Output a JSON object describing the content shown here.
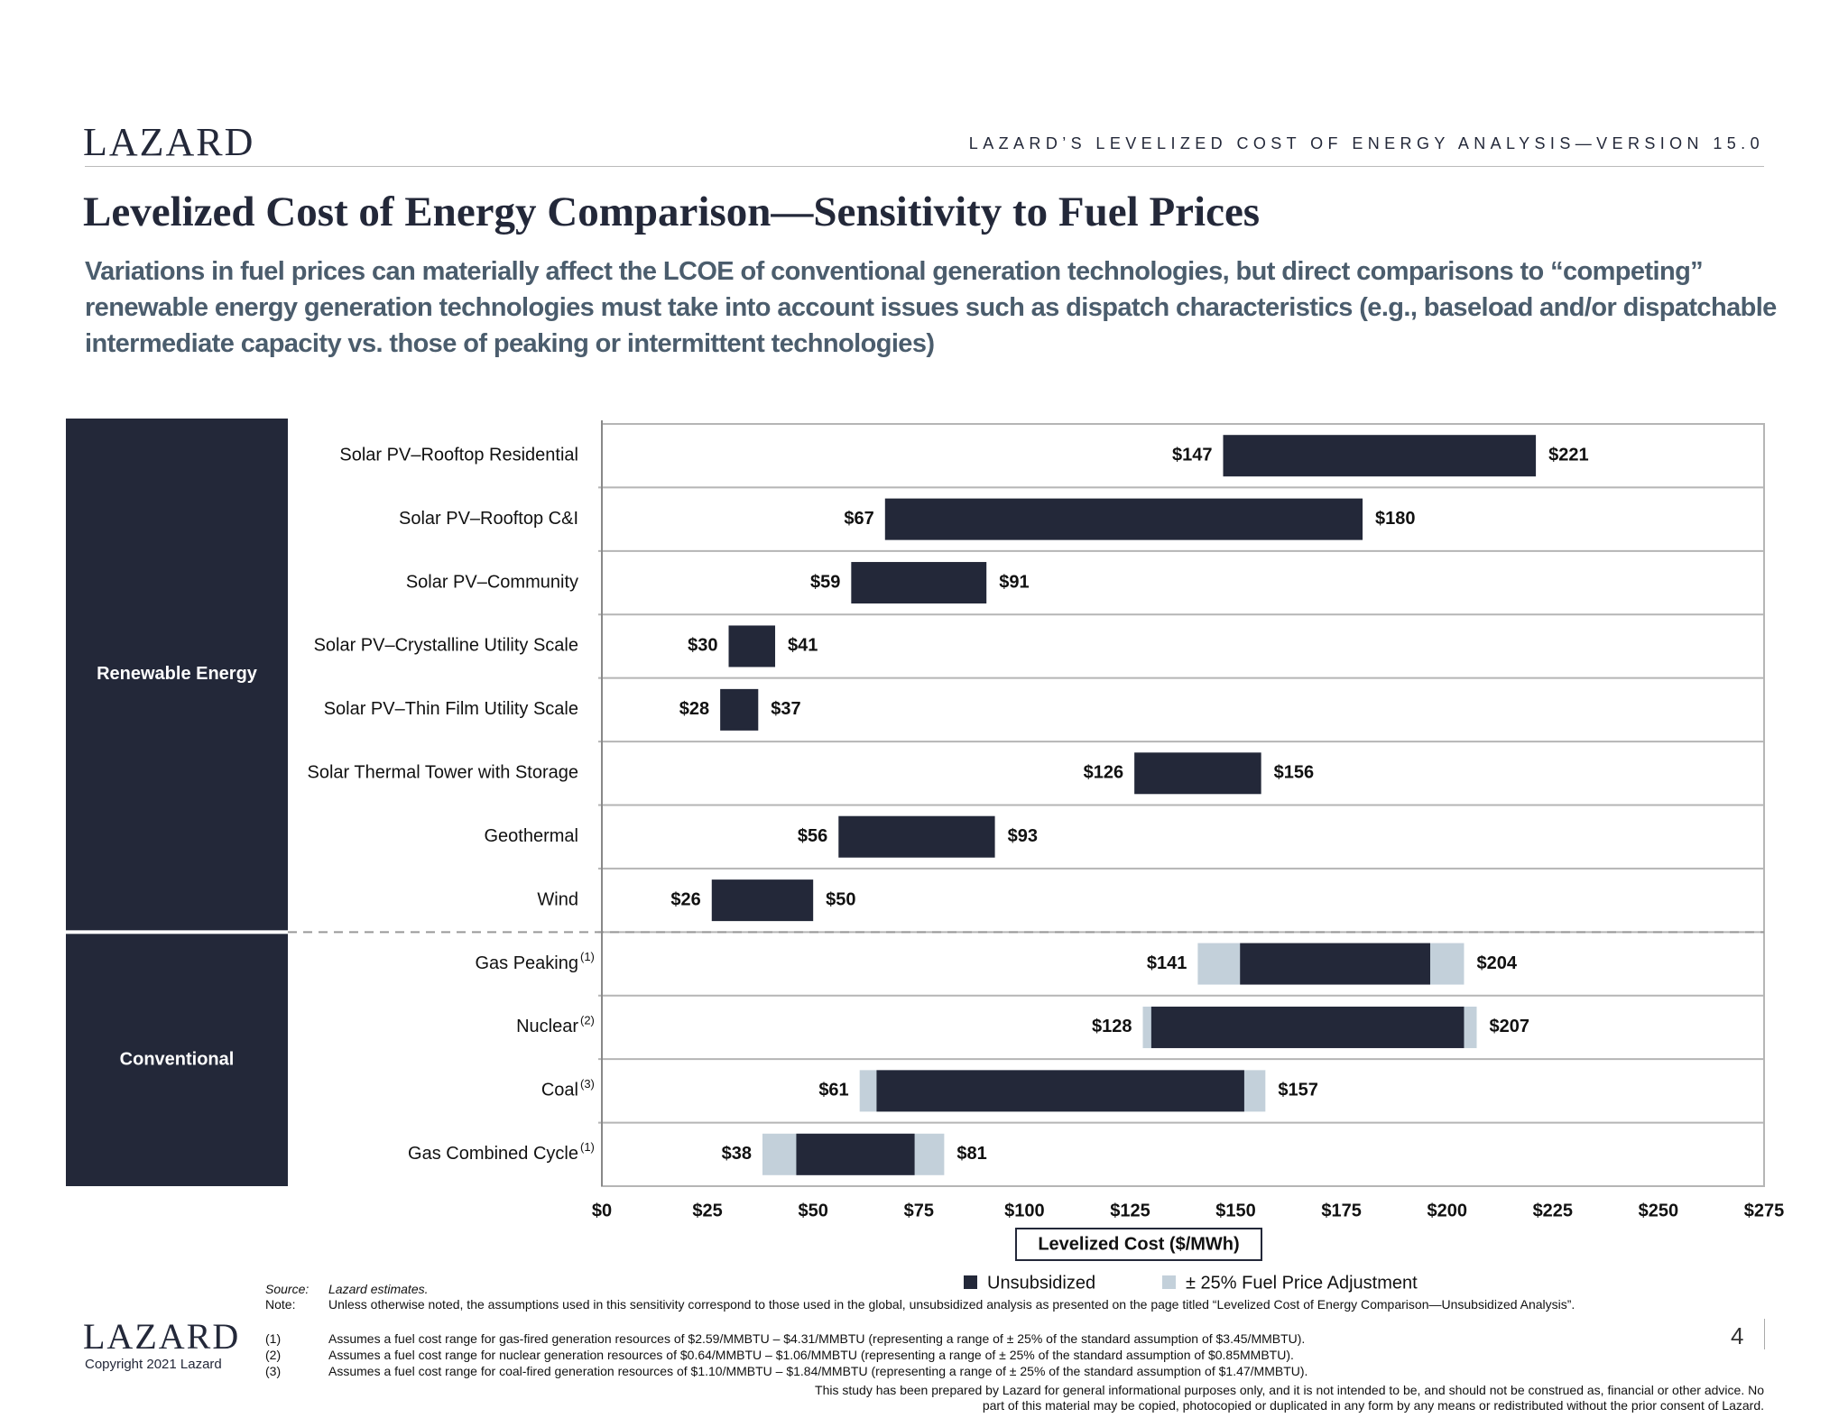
{
  "header": {
    "logo": "LAZARD",
    "report": "LAZARD’S LEVELIZED COST OF ENERGY ANALYSIS—VERSION 15.0",
    "title": "Levelized Cost of Energy Comparison—Sensitivity to Fuel Prices",
    "subtitle": "Variations in fuel prices can materially affect the LCOE of conventional generation technologies, but direct comparisons to “competing” renewable energy generation technologies must take into account issues such as dispatch characteristics (e.g., baseload and/or dispatchable intermediate capacity vs. those of peaking or intermittent technologies)"
  },
  "chart_data": {
    "type": "range-bar",
    "groups": [
      {
        "label": "Renewable Energy",
        "categories": [
          "Solar PV–Rooftop Residential",
          "Solar PV–Rooftop C&I",
          "Solar PV–Community",
          "Solar PV–Crystalline Utility Scale",
          "Solar PV–Thin Film Utility Scale",
          "Solar Thermal Tower with Storage",
          "Geothermal",
          "Wind"
        ]
      },
      {
        "label": "Conventional",
        "categories": [
          "Gas Peaking",
          "Nuclear",
          "Coal",
          "Gas Combined Cycle"
        ]
      }
    ],
    "category_markers": [
      null,
      null,
      null,
      null,
      null,
      null,
      null,
      null,
      "(1)",
      "(2)",
      "(3)",
      "(1)"
    ],
    "series": [
      {
        "name": "± 25% Fuel Price Adjustment",
        "color": "#c3d0da",
        "low": [
          null,
          null,
          null,
          null,
          null,
          null,
          null,
          null,
          141,
          128,
          61,
          38
        ],
        "high": [
          null,
          null,
          null,
          null,
          null,
          null,
          null,
          null,
          204,
          207,
          157,
          81
        ],
        "low_labels": [
          null,
          null,
          null,
          null,
          null,
          null,
          null,
          null,
          "$141",
          "$128",
          "$61",
          "$38"
        ],
        "high_labels": [
          null,
          null,
          null,
          null,
          null,
          null,
          null,
          null,
          "$204",
          "$207",
          "$157",
          "$81"
        ]
      },
      {
        "name": "Unsubsidized",
        "color": "#232839",
        "low": [
          147,
          67,
          59,
          30,
          28,
          126,
          56,
          26,
          151,
          130,
          65,
          46
        ],
        "high": [
          221,
          180,
          91,
          41,
          37,
          156,
          93,
          50,
          196,
          204,
          152,
          74
        ],
        "low_labels": [
          "$147",
          "$67",
          "$59",
          "$30",
          "$28",
          "$126",
          "$56",
          "$26",
          null,
          null,
          null,
          null
        ],
        "high_labels": [
          "$221",
          "$180",
          "$91",
          "$41",
          "$37",
          "$156",
          "$93",
          "$50",
          null,
          null,
          null,
          null
        ]
      }
    ],
    "legend_order": [
      "Unsubsidized",
      "± 25% Fuel Price Adjustment"
    ],
    "xlabel": "Levelized Cost ($/MWh)",
    "xlim": [
      0,
      275
    ],
    "xticks": [
      {
        "value": 0,
        "label": "$0"
      },
      {
        "value": 25,
        "label": "$25"
      },
      {
        "value": 50,
        "label": "$50"
      },
      {
        "value": 75,
        "label": "$75"
      },
      {
        "value": 100,
        "label": "$100"
      },
      {
        "value": 125,
        "label": "$125"
      },
      {
        "value": 150,
        "label": "$150"
      },
      {
        "value": 175,
        "label": "$175"
      },
      {
        "value": 200,
        "label": "$200"
      },
      {
        "value": 225,
        "label": "$225"
      },
      {
        "value": 250,
        "label": "$250"
      },
      {
        "value": 275,
        "label": "$275"
      }
    ]
  },
  "footer": {
    "source_label": "Source:",
    "source": "Lazard estimates.",
    "note_label": "Note:",
    "note": "Unless otherwise noted, the assumptions used in this sensitivity correspond to those used in the global, unsubsidized analysis as presented on the page titled “Levelized Cost of Energy Comparison—Unsubsidized Analysis”.",
    "footnotes": [
      {
        "marker": "(1)",
        "text": "Assumes a fuel cost range for gas-fired generation resources of $2.59/MMBTU – $4.31/MMBTU (representing a range of ± 25% of the standard assumption of $3.45/MMBTU)."
      },
      {
        "marker": "(2)",
        "text": "Assumes a fuel cost range for nuclear generation resources of $0.64/MMBTU – $1.06/MMBTU (representing a range of ± 25% of the standard assumption of $0.85MMBTU)."
      },
      {
        "marker": "(3)",
        "text": "Assumes a fuel cost range for coal-fired generation resources of $1.10/MMBTU – $1.84/MMBTU (representing a range of ± 25% of the standard assumption of $1.47/MMBTU)."
      }
    ],
    "logo": "LAZARD",
    "copyright": "Copyright 2021 Lazard",
    "page_number": 4,
    "disclaimer": "This study has been prepared by Lazard for general informational purposes only, and it is not intended to be, and should not be construed as, financial or other advice. No part of this material may be copied, photocopied or duplicated in any form by any means or redistributed without the prior consent of Lazard."
  }
}
